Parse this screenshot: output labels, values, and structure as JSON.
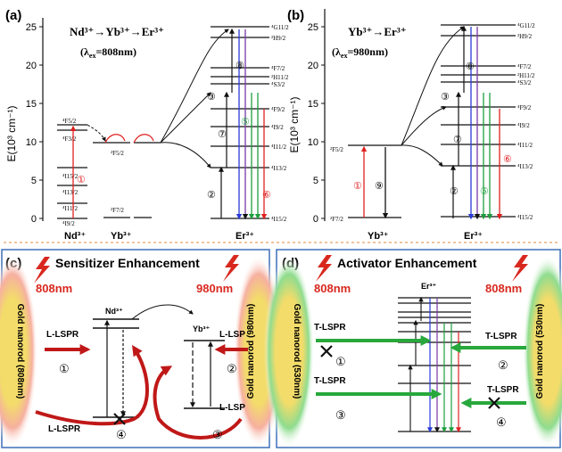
{
  "panels": {
    "a": {
      "label": "(a)",
      "title_ions": "Nd³⁺→Yb³⁺→Er³⁺",
      "excitation_prefix": "(λ",
      "excitation_sub": "ex",
      "excitation_value": "=808nm)",
      "ion_nd": "Nd³⁺",
      "ion_yb": "Yb³⁺",
      "ion_er": "Er³⁺",
      "nd_levels": [
        "⁴F5/2",
        "⁴F3/2",
        "⁴I15/2",
        "⁴I13/2",
        "⁴I11/2",
        "⁴I9/2"
      ],
      "yb_levels": [
        "²F5/2",
        "²F7/2"
      ],
      "steps": [
        "①",
        "②",
        "③",
        "④",
        "⑤",
        "⑥",
        "⑦",
        "⑧"
      ]
    },
    "b": {
      "label": "(b)",
      "title_ions": "Yb³⁺→Er³⁺",
      "excitation_prefix": "(λ",
      "excitation_sub": "ex",
      "excitation_value": "=980nm)",
      "ion_yb": "Yb³⁺",
      "ion_er": "Er³⁺",
      "yb_levels": [
        "²F5/2",
        "²F7/2"
      ],
      "steps": [
        "①",
        "⑨",
        "②",
        "⑦",
        "③",
        "⑧",
        "⑤",
        "⑥"
      ]
    },
    "c": {
      "label": "(c)",
      "title": "Sensitizer Enhancement",
      "laser_left": "808nm",
      "laser_right": "980nm",
      "rod_left": "Gold nanorod (808nm)",
      "rod_right": "Gold nanorod (980nm)",
      "ion_nd": "Nd³⁺",
      "ion_yb": "Yb³⁺",
      "lspr_1": "L-LSPR",
      "lspr_2": "L-LSP",
      "lspr_3": "L-LSP",
      "lspr_4": "L-LSPR",
      "steps": [
        "①",
        "②",
        "③",
        "④"
      ]
    },
    "d": {
      "label": "(d)",
      "title": "Activator Enhancement",
      "laser_left": "808nm",
      "laser_right": "808nm",
      "rod_left": "Gold nanorod (530nm)",
      "rod_right": "Gold nanorod (530nm)",
      "ion_er": "Er³⁺",
      "lspr_1": "T-LSPR",
      "lspr_2": "T-LSPR",
      "lspr_3": "T-LSPR",
      "lspr_4": "T-LSPR",
      "steps": [
        "①",
        "②",
        "③",
        "④"
      ]
    }
  },
  "er_levels": [
    "⁴G11/2",
    "²H9/2",
    "⁴F7/2",
    "²H11/2",
    "⁴S3/2",
    "⁴F9/2",
    "⁴I9/2",
    "⁴I11/2",
    "⁴I13/2",
    "⁴I15/2"
  ],
  "axis": {
    "ylabel": "E(10³ cm⁻¹)",
    "ticks": [
      "0",
      "5",
      "10",
      "15",
      "20",
      "25"
    ]
  },
  "colors": {
    "red": "#e02020",
    "green": "#1e9e3e",
    "blue": "#2a3bd6",
    "purple": "#7a3aa8",
    "rod_fill": "#f3dc6a",
    "rod_glow_red": "#f08080",
    "rod_glow_green": "#6fcf6f",
    "bolt": "#d8281e",
    "arrow_red": "#c01818",
    "arrow_green": "#28a83c"
  }
}
